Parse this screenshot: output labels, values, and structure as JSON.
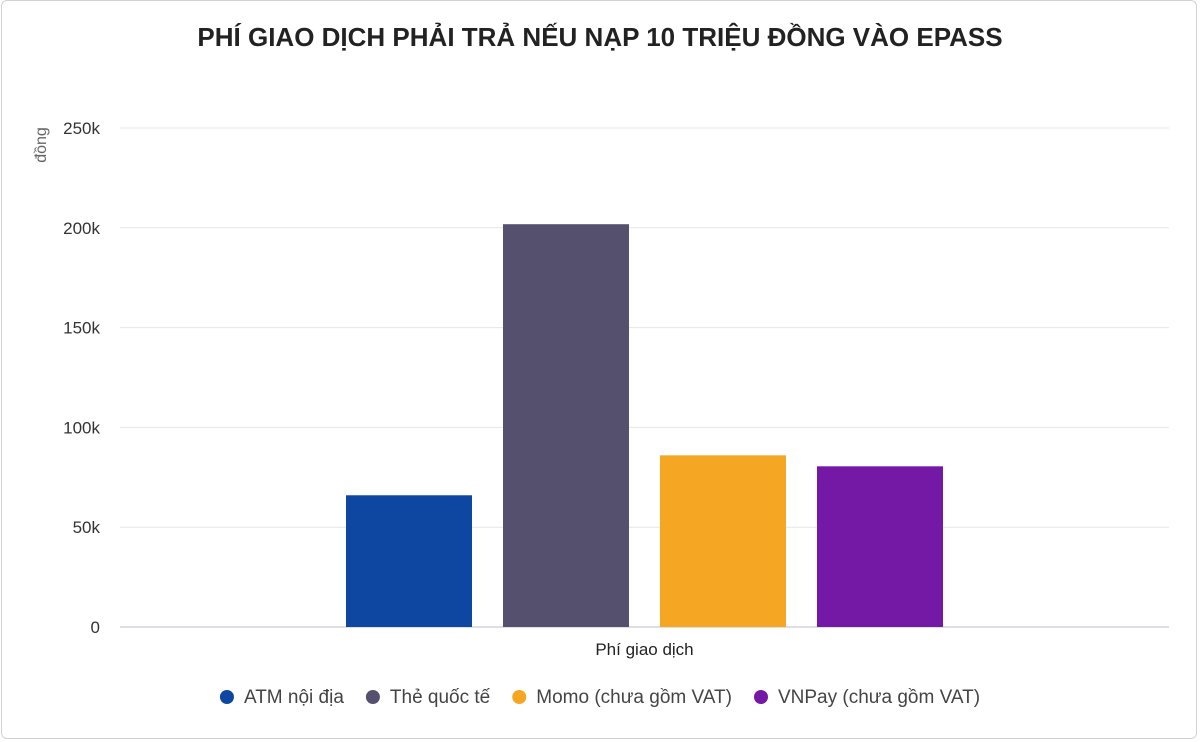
{
  "chart_data": {
    "type": "bar",
    "title": "PHÍ GIAO DỊCH PHẢI TRẢ NẾU NẠP 10 TRIỆU ĐỒNG VÀO EPASS",
    "ylabel": "đồng",
    "xlabel": "",
    "categories": [
      "Phí giao dịch"
    ],
    "ylim": [
      0,
      250000
    ],
    "yticks": [
      {
        "value": 0,
        "label": "0"
      },
      {
        "value": 50000,
        "label": "50k"
      },
      {
        "value": 100000,
        "label": "100k"
      },
      {
        "value": 150000,
        "label": "150k"
      },
      {
        "value": 200000,
        "label": "200k"
      },
      {
        "value": 250000,
        "label": "250k"
      }
    ],
    "grid": true,
    "legend_position": "bottom",
    "series": [
      {
        "name": "ATM nội địa",
        "values": [
          66000
        ],
        "color": "#0d47a1"
      },
      {
        "name": "Thẻ quốc tế",
        "values": [
          201800
        ],
        "color": "#56506f"
      },
      {
        "name": "Momo (chưa gồm VAT)",
        "values": [
          86000
        ],
        "color": "#f5a623"
      },
      {
        "name": "VNPay (chưa gồm VAT)",
        "values": [
          80500
        ],
        "color": "#7319a5"
      }
    ]
  }
}
